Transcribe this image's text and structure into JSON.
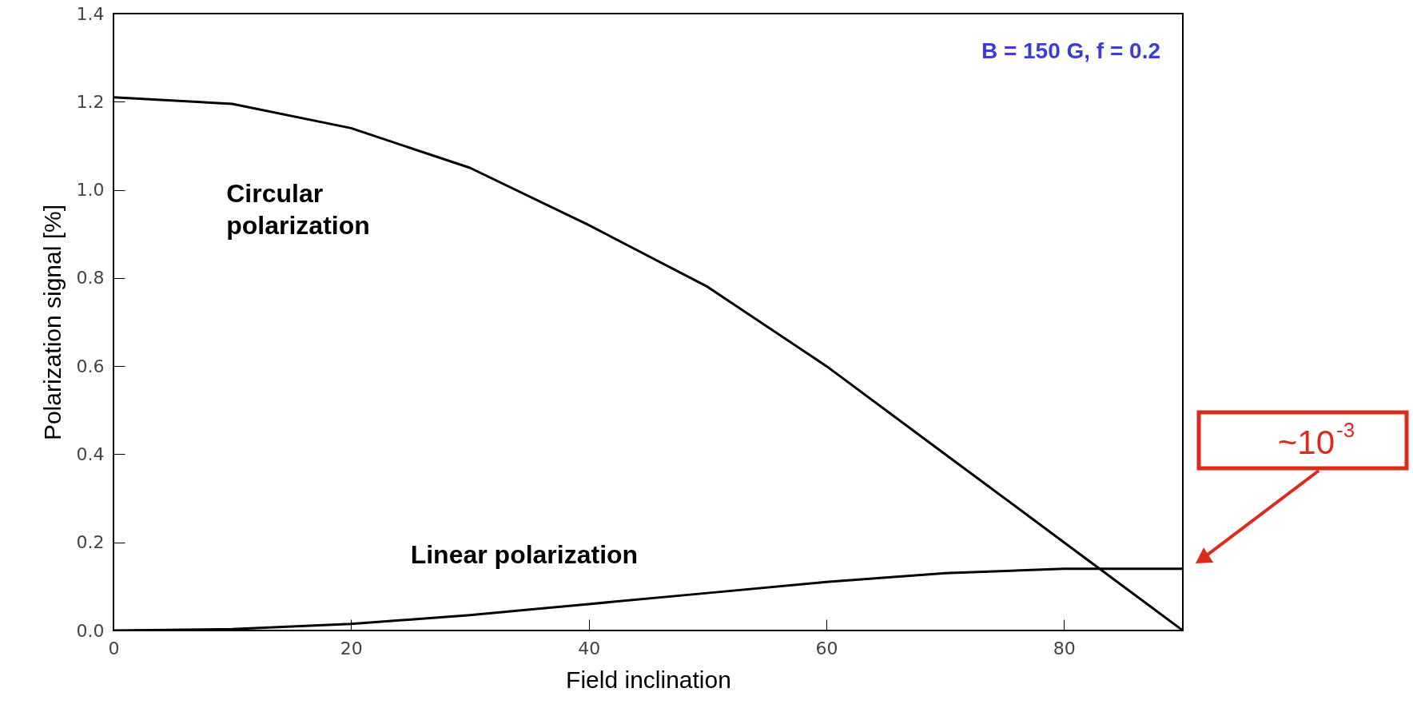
{
  "chart_data": {
    "type": "line",
    "xlabel": "Field inclination",
    "ylabel": "Polarization signal [%]",
    "x": [
      0,
      10,
      20,
      30,
      40,
      50,
      60,
      70,
      80,
      90
    ],
    "series": [
      {
        "name": "Circular polarization",
        "color": "#000000",
        "values": [
          1.21,
          1.195,
          1.14,
          1.05,
          0.92,
          0.78,
          0.6,
          0.4,
          0.2,
          0.0
        ]
      },
      {
        "name": "Linear polarization",
        "color": "#000000",
        "values": [
          0.0,
          0.003,
          0.015,
          0.035,
          0.06,
          0.085,
          0.11,
          0.13,
          0.14,
          0.14
        ]
      }
    ],
    "xlim": [
      0,
      90
    ],
    "xticks": [
      0,
      20,
      40,
      60,
      80
    ],
    "ylim": [
      0,
      1.4
    ],
    "yticks": [
      {
        "value": 0,
        "label": "0.0"
      },
      {
        "value": 0.2,
        "label": "0.2"
      },
      {
        "value": 0.4,
        "label": "0.4"
      },
      {
        "value": 0.6,
        "label": "0.6"
      },
      {
        "value": 0.8,
        "label": "0.8"
      },
      {
        "value": 1,
        "label": "1.0"
      },
      {
        "value": 1.2,
        "label": "1.2"
      },
      {
        "value": 1.4,
        "label": "1.4"
      }
    ],
    "grid": false,
    "legend": false,
    "marker": "none",
    "line_style": "solid",
    "annotations": [
      "B = 150 G, f = 0.2",
      "~10$^{-3}$"
    ]
  }
}
